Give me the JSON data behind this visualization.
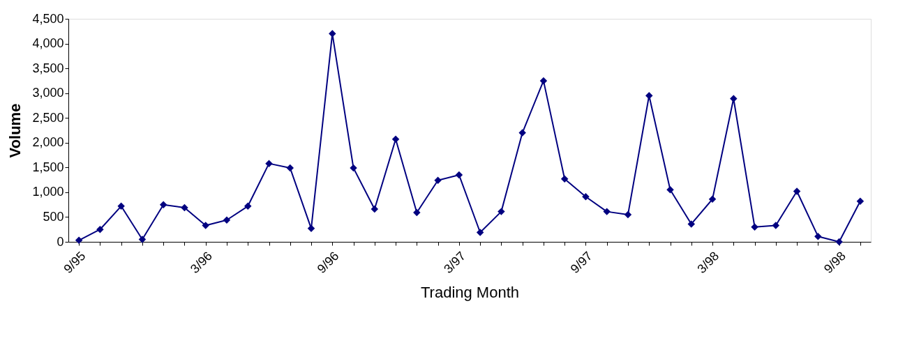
{
  "chart_data": {
    "type": "line",
    "xlabel": "Trading Month",
    "ylabel": "Volume",
    "categories": [
      "9/95",
      null,
      null,
      null,
      null,
      null,
      "3/96",
      null,
      null,
      null,
      null,
      null,
      "9/96",
      null,
      null,
      null,
      null,
      null,
      "3/97",
      null,
      null,
      null,
      null,
      null,
      "9/97",
      null,
      null,
      null,
      null,
      null,
      "3/98",
      null,
      null,
      null,
      null,
      null,
      "9/98",
      null
    ],
    "series": [
      {
        "color": "#000080",
        "values": [
          30,
          250,
          720,
          50,
          750,
          690,
          330,
          440,
          720,
          1580,
          1490,
          270,
          4200,
          1490,
          660,
          2070,
          590,
          1240,
          1350,
          190,
          610,
          2200,
          3250,
          1270,
          910,
          610,
          550,
          2950,
          1050,
          360,
          860,
          2890,
          300,
          330,
          1020,
          110,
          0,
          820
        ]
      }
    ],
    "ylim": [
      0,
      4500
    ],
    "yticks": [
      {
        "value": 0,
        "label": "0"
      },
      {
        "value": 500,
        "label": "500"
      },
      {
        "value": 1000,
        "label": "1,000"
      },
      {
        "value": 1500,
        "label": "1,500"
      },
      {
        "value": 2000,
        "label": "2,000"
      },
      {
        "value": 2500,
        "label": "2,500"
      },
      {
        "value": 3000,
        "label": "3,000"
      },
      {
        "value": 3500,
        "label": "3,500"
      },
      {
        "value": 4000,
        "label": "4,000"
      },
      {
        "value": 4500,
        "label": "4,500"
      }
    ],
    "grid": false,
    "marker": "diamond",
    "line_style": "solid"
  }
}
